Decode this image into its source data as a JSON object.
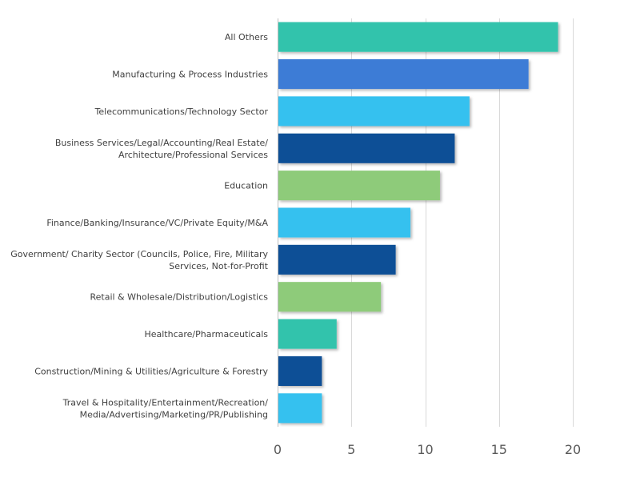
{
  "chart_data": {
    "type": "bar",
    "orientation": "horizontal",
    "title": "",
    "xlabel": "",
    "ylabel": "",
    "xlim": [
      0,
      20
    ],
    "xticks": [
      0,
      5,
      10,
      15,
      20
    ],
    "grid": true,
    "legend": "none",
    "categories": [
      [
        "All Others"
      ],
      [
        "Manufacturing & Process Industries"
      ],
      [
        "Telecommunications/Technology Sector"
      ],
      [
        "Business Services/Legal/Accounting/Real Estate/",
        "Architecture/Professional Services"
      ],
      [
        "Education"
      ],
      [
        "Finance/Banking/Insurance/VC/Private Equity/M&A"
      ],
      [
        "Government/ Charity Sector (Councils, Police, Fire, Military",
        "Services, Not-for-Profit"
      ],
      [
        "Retail & Wholesale/Distribution/Logistics"
      ],
      [
        "Healthcare/Pharmaceuticals"
      ],
      [
        "Construction/Mining & Utilities/Agriculture & Forestry"
      ],
      [
        "Travel & Hospitality/Entertainment/Recreation/",
        "Media/Advertising/Marketing/PR/Publishing"
      ]
    ],
    "values": [
      19,
      17,
      13,
      12,
      11,
      9,
      8,
      7,
      4,
      3,
      3
    ],
    "colors": [
      "#31c3ac",
      "#3e7bd6",
      "#35c1ef",
      "#0b4f96",
      "#8ecb7a",
      "#35c1ef",
      "#0b4f96",
      "#8ecb7a",
      "#31c3ac",
      "#0b4f96",
      "#35c1ef"
    ]
  }
}
